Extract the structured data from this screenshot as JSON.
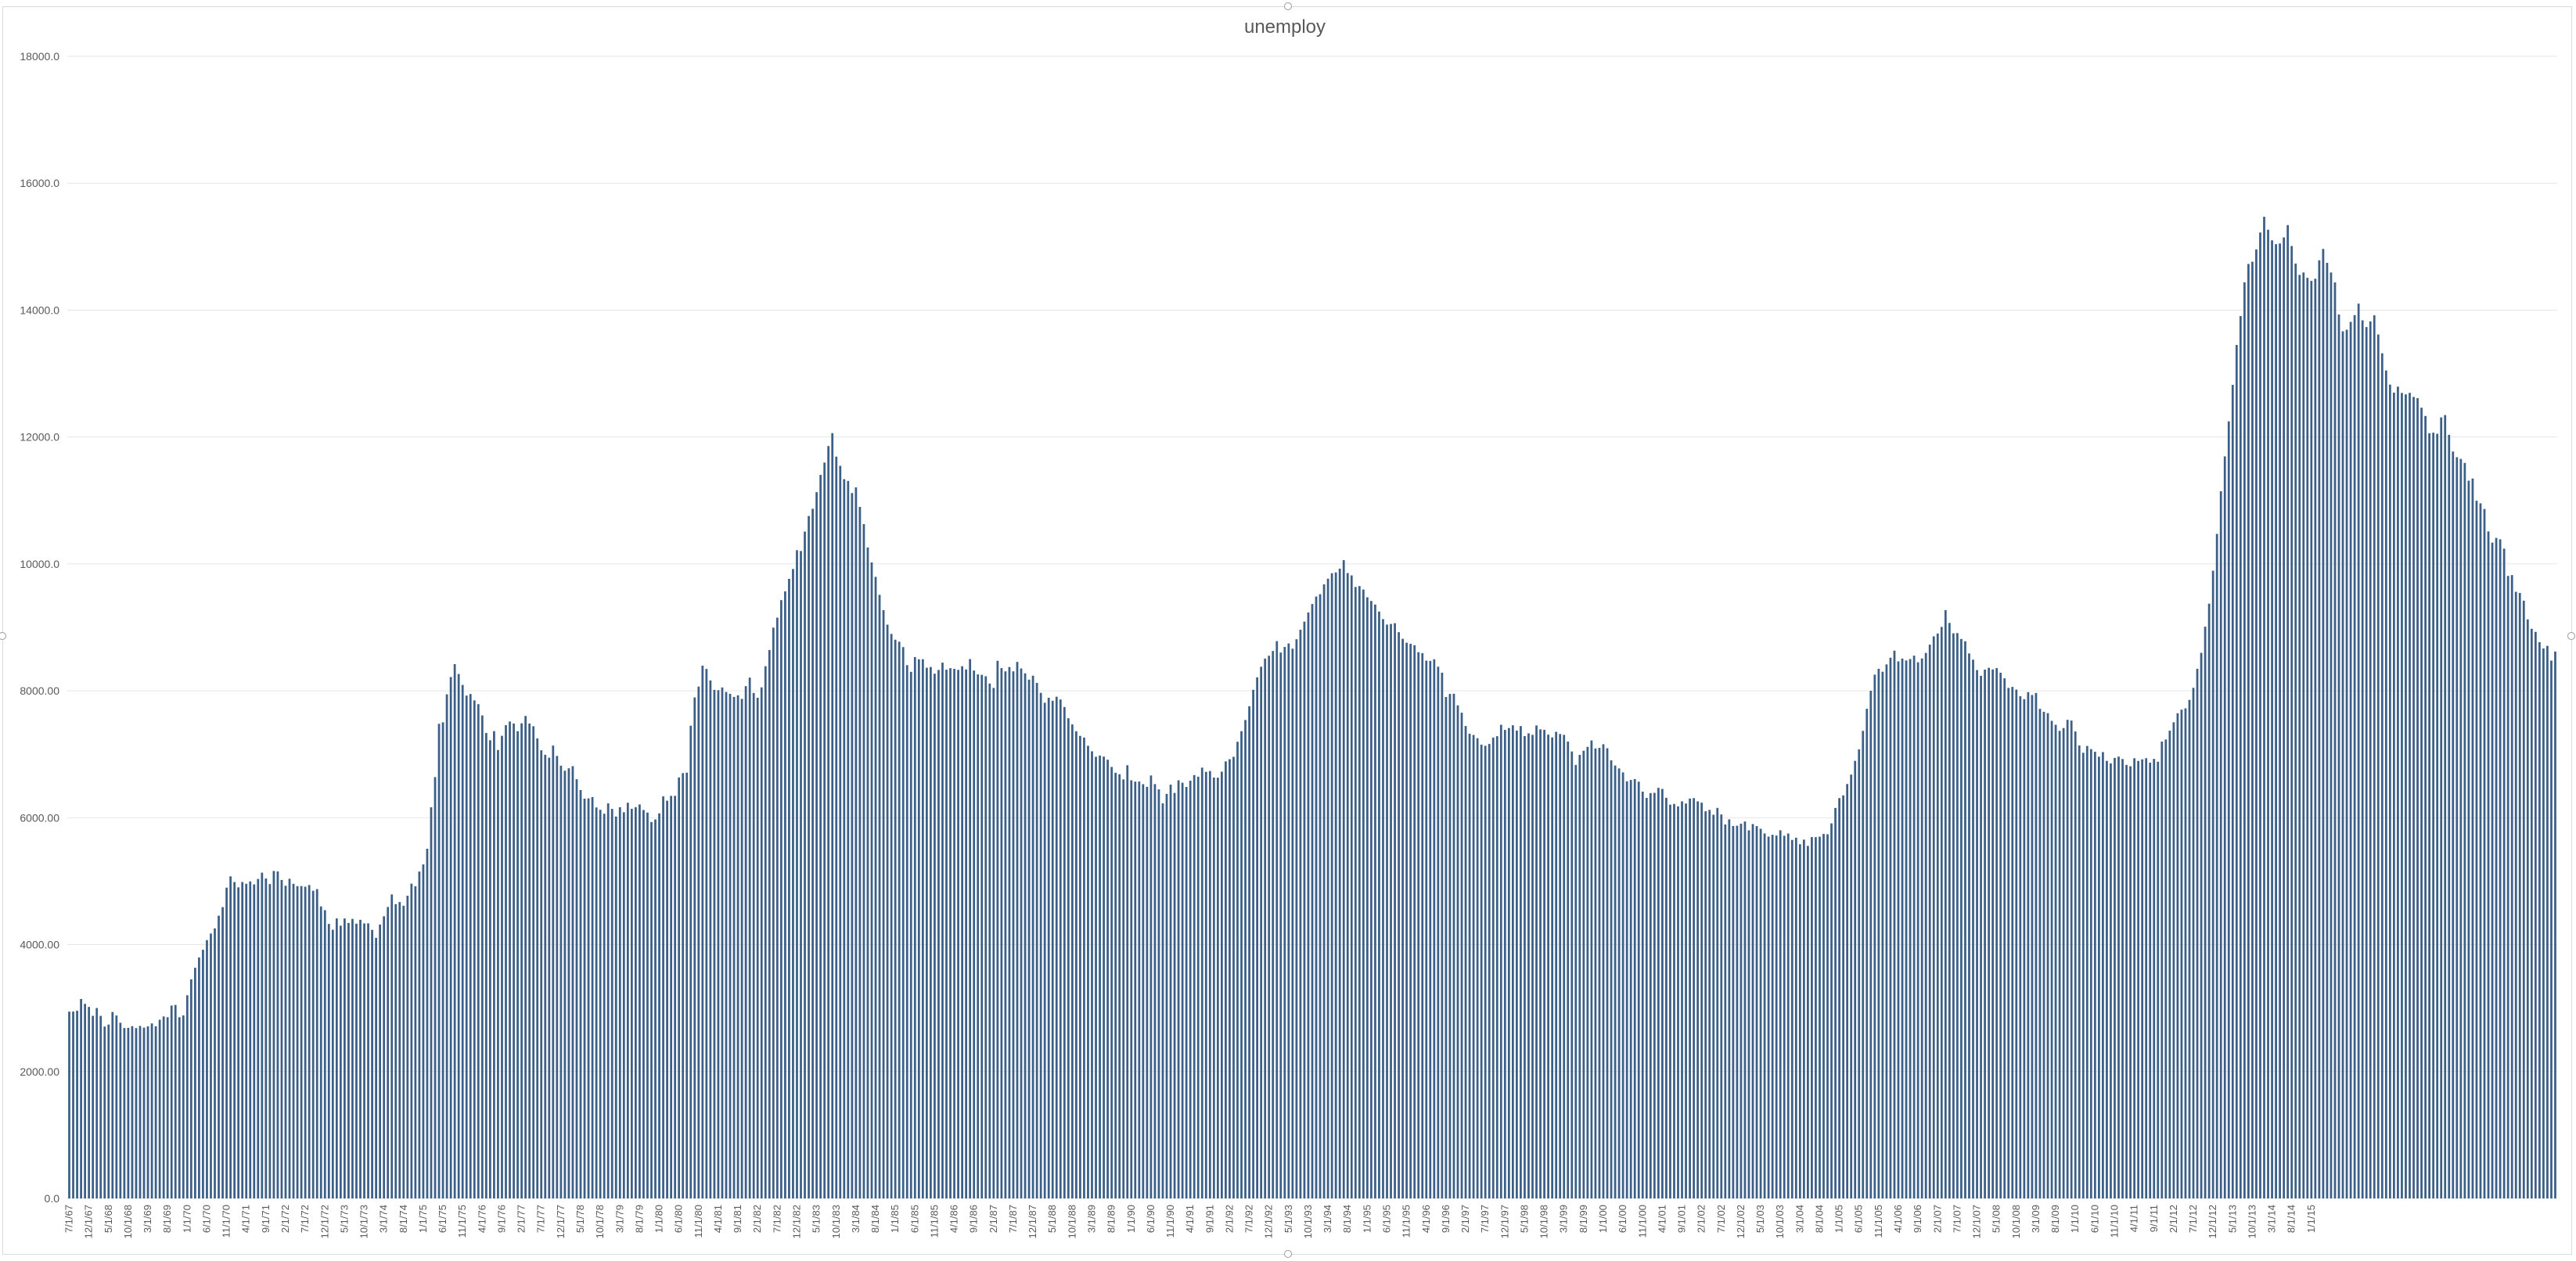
{
  "chart_data": {
    "type": "bar",
    "title": "unemploy",
    "xlabel": "",
    "ylabel": "",
    "ylim": [
      0,
      18000
    ],
    "yticks": [
      "0.0",
      "2000.00",
      "4000.00",
      "6000.00",
      "8000.00",
      "10000.0",
      "12000.0",
      "14000.0",
      "16000.0",
      "18000.0"
    ],
    "ytick_values": [
      0,
      2000,
      4000,
      6000,
      8000,
      10000,
      12000,
      14000,
      16000,
      18000
    ],
    "grid": true,
    "legend": "none",
    "bar_color": "#3b5f87",
    "x_tick_labels": [
      "7/1/67",
      "12/1/67",
      "5/1/68",
      "10/1/68",
      "3/1/69",
      "8/1/69",
      "1/1/70",
      "6/1/70",
      "11/1/70",
      "4/1/71",
      "9/1/71",
      "2/1/72",
      "7/1/72",
      "12/1/72",
      "5/1/73",
      "10/1/73",
      "3/1/74",
      "8/1/74",
      "1/1/75",
      "6/1/75",
      "11/1/75",
      "4/1/76",
      "9/1/76",
      "2/1/77",
      "7/1/77",
      "12/1/77",
      "5/1/78",
      "10/1/78",
      "3/1/79",
      "8/1/79",
      "1/1/80",
      "6/1/80",
      "11/1/80",
      "4/1/81",
      "9/1/81",
      "2/1/82",
      "7/1/82",
      "12/1/82",
      "5/1/83",
      "10/1/83",
      "3/1/84",
      "8/1/84",
      "1/1/85",
      "6/1/85",
      "11/1/85",
      "4/1/86",
      "9/1/86",
      "2/1/87",
      "7/1/87",
      "12/1/87",
      "5/1/88",
      "10/1/88",
      "3/1/89",
      "8/1/89",
      "1/1/90",
      "6/1/90",
      "11/1/90",
      "4/1/91",
      "9/1/91",
      "2/1/92",
      "7/1/92",
      "12/1/92",
      "5/1/93",
      "10/1/93",
      "3/1/94",
      "8/1/94",
      "1/1/95",
      "6/1/95",
      "11/1/95",
      "4/1/96",
      "9/1/96",
      "2/1/97",
      "7/1/97",
      "12/1/97",
      "5/1/98",
      "10/1/98",
      "3/1/99",
      "8/1/99",
      "1/1/00",
      "6/1/00",
      "11/1/00",
      "4/1/01",
      "9/1/01",
      "2/1/02",
      "7/1/02",
      "12/1/02",
      "5/1/03",
      "10/1/03",
      "3/1/04",
      "8/1/04",
      "1/1/05",
      "6/1/05",
      "11/1/05",
      "4/1/06",
      "9/1/06",
      "2/1/07",
      "7/1/07",
      "12/1/07",
      "5/1/08",
      "10/1/08",
      "3/1/09",
      "8/1/09",
      "1/1/10",
      "6/1/10",
      "11/1/10",
      "4/1/11",
      "9/1/11",
      "2/1/12",
      "7/1/12",
      "12/1/12",
      "5/1/13",
      "10/1/13",
      "3/1/14",
      "8/1/14",
      "1/1/15"
    ],
    "series": [
      {
        "values": [
          2944,
          2945,
          2958,
          3143,
          3066,
          3018,
          2878,
          3001,
          2877,
          2709,
          2740,
          2938,
          2883,
          2768,
          2686,
          2689,
          2715,
          2685,
          2718,
          2692,
          2712,
          2758,
          2713,
          2816,
          2868,
          2856,
          3040,
          3049,
          2856,
          2884,
          3201,
          3453,
          3635,
          3797,
          3919,
          4071,
          4175,
          4256,
          4456,
          4591,
          4898,
          5076,
          4986,
          4903,
          4987,
          4959,
          4996,
          4949,
          5035,
          5134,
          5042,
          4954,
          5161,
          5154,
          5019,
          4928,
          5038,
          4959,
          4922,
          4923,
          4913,
          4939,
          4849,
          4875,
          4602,
          4543,
          4326,
          4235,
          4413,
          4298,
          4412,
          4341,
          4405,
          4330,
          4391,
          4334,
          4335,
          4232,
          4107,
          4317,
          4447,
          4593,
          4791,
          4637,
          4671,
          4613,
          4770,
          4961,
          4919,
          5152,
          5264,
          5511,
          6164,
          6640,
          7480,
          7503,
          7945,
          8217,
          8420,
          8265,
          8093,
          7925,
          7950,
          7849,
          7789,
          7612,
          7335,
          7221,
          7364,
          7067,
          7291,
          7458,
          7516,
          7484,
          7363,
          7488,
          7604,
          7484,
          7442,
          7250,
          7063,
          6992,
          6946,
          7137,
          6974,
          6820,
          6741,
          6779,
          6813,
          6607,
          6436,
          6301,
          6305,
          6325,
          6162,
          6125,
          6063,
          6227,
          6139,
          6019,
          6166,
          6086,
          6236,
          6141,
          6167,
          6209,
          6122,
          6081,
          5932,
          5973,
          6069,
          6336,
          6268,
          6344,
          6345,
          6635,
          6703,
          6710,
          7450,
          7896,
          8067,
          8397,
          8345,
          8164,
          8015,
          8010,
          8053,
          7982,
          7953,
          7904,
          7929,
          7873,
          8074,
          8208,
          7966,
          7891,
          8054,
          8388,
          8643,
          8996,
          9153,
          9429,
          9568,
          9765,
          9920,
          10216,
          10203,
          10510,
          10755,
          10869,
          11131,
          11403,
          11597,
          11858,
          12061,
          11691,
          11546,
          11336,
          11308,
          11117,
          11206,
          10899,
          10627,
          10260,
          10023,
          9796,
          9513,
          9271,
          9043,
          8897,
          8806,
          8774,
          8689,
          8405,
          8299,
          8532,
          8497,
          8498,
          8364,
          8375,
          8270,
          8329,
          8444,
          8333,
          8357,
          8346,
          8330,
          8388,
          8337,
          8500,
          8320,
          8259,
          8252,
          8230,
          8115,
          8046,
          8473,
          8358,
          8307,
          8375,
          8307,
          8456,
          8352,
          8276,
          8176,
          8239,
          8124,
          7968,
          7812,
          7890,
          7844,
          7907,
          7864,
          7745,
          7568,
          7470,
          7362,
          7290,
          7263,
          7134,
          7047,
          6961,
          6980,
          6963,
          6914,
          6800,
          6709,
          6685,
          6604,
          6827,
          6590,
          6569,
          6570,
          6529,
          6487,
          6666,
          6530,
          6447,
          6227,
          6376,
          6521,
          6391,
          6589,
          6552,
          6486,
          6584,
          6672,
          6647,
          6790,
          6723,
          6736,
          6633,
          6631,
          6726,
          6888,
          6922,
          6960,
          7197,
          7364,
          7540,
          7757,
          8016,
          8212,
          8379,
          8508,
          8553,
          8628,
          8783,
          8603,
          8691,
          8747,
          8664,
          8813,
          8963,
          9091,
          9235,
          9368,
          9486,
          9523,
          9678,
          9767,
          9853,
          9866,
          9925,
          10059,
          9856,
          9819,
          9637,
          9651,
          9597,
          9474,
          9416,
          9360,
          9249,
          9130,
          9044,
          9054,
          9066,
          8924,
          8820,
          8758,
          8741,
          8719,
          8609,
          8594,
          8476,
          8472,
          8497,
          8380,
          8286,
          7903,
          7951,
          7954,
          7771,
          7655,
          7445,
          7324,
          7304,
          7253,
          7152,
          7134,
          7162,
          7263,
          7285,
          7465,
          7384,
          7413,
          7457,
          7373,
          7444,
          7286,
          7330,
          7306,
          7454,
          7393,
          7385,
          7309,
          7266,
          7354,
          7319,
          7306,
          7199,
          7044,
          6832,
          6990,
          7056,
          7117,
          7218,
          7092,
          7101,
          7158,
          7095,
          6904,
          6823,
          6777,
          6714,
          6574,
          6595,
          6609,
          6568,
          6411,
          6313,
          6388,
          6392,
          6471,
          6454,
          6314,
          6206,
          6217,
          6179,
          6258,
          6224,
          6302,
          6309,
          6258,
          6237,
          6102,
          6123,
          6047,
          6155,
          6051,
          5893,
          5974,
          5870,
          5874,
          5906,
          5940,
          5801,
          5900,
          5868,
          5826,
          5752,
          5702,
          5731,
          5719,
          5802,
          5715,
          5751,
          5650,
          5684,
          5582,
          5655,
          5556,
          5695,
          5694,
          5701,
          5744,
          5739,
          5911,
          6154,
          6309,
          6352,
          6531,
          6680,
          6896,
          7076,
          7369,
          7717,
          8001,
          8255,
          8347,
          8301,
          8416,
          8522,
          8633,
          8464,
          8508,
          8479,
          8501,
          8554,
          8450,
          8510,
          8597,
          8728,
          8859,
          8903,
          9007,
          9271,
          9070,
          8906,
          8910,
          8817,
          8781,
          8589,
          8491,
          8327,
          8237,
          8334,
          8363,
          8337,
          8358,
          8285,
          8197,
          8046,
          8062,
          8019,
          7915,
          7868,
          7979,
          7934,
          7966,
          7716,
          7669,
          7648,
          7527,
          7465,
          7369,
          7413,
          7543,
          7531,
          7359,
          7139,
          7024,
          7131,
          7081,
          7039,
          6962,
          7034,
          6896,
          6856,
          6943,
          6963,
          6925,
          6832,
          6811,
          6937,
          6895,
          6919,
          6938,
          6868,
          6927,
          6882,
          7200,
          7233,
          7372,
          7504,
          7647,
          7703,
          7724,
          7857,
          8047,
          8347,
          8599,
          9011,
          9374,
          9893,
          10473,
          11145,
          11695,
          12247,
          12822,
          13451,
          13906,
          14438,
          14727,
          14763,
          14957,
          15223,
          15471,
          15267,
          15100,
          15039,
          15050,
          15146,
          15340,
          15010,
          14734,
          14555,
          14593,
          14509,
          14461,
          14495,
          14785,
          14964,
          14745,
          14593,
          14436,
          13930,
          13666,
          13691,
          13815,
          13921,
          14102,
          13839,
          13733,
          13823,
          13918,
          13616,
          13320,
          13049,
          12826,
          12700,
          12794,
          12695,
          12672,
          12696,
          12632,
          12613,
          12462,
          12332,
          12060,
          12068,
          12051,
          12309,
          12346,
          12035,
          11771,
          11682,
          11655,
          11592,
          11312,
          11346,
          10996,
          10955,
          10866,
          10512,
          10336,
          10410,
          10388,
          10241,
          9811,
          9824,
          9561,
          9542,
          9421,
          9126,
          8978,
          8929,
          8767,
          8667,
          8709,
          8476,
          8619
        ]
      }
    ]
  }
}
